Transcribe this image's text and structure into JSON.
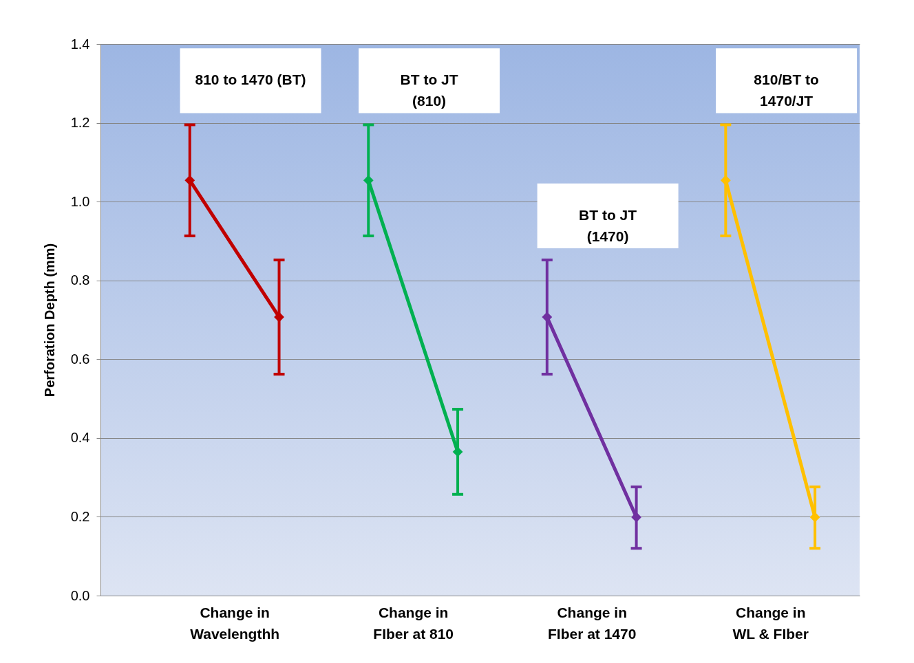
{
  "chart_data": {
    "type": "line",
    "ylabel": "Perforation Depth (mm)",
    "categories": [
      null,
      null,
      "Change in\nWavelengthh",
      null,
      null,
      null,
      "Change in\nFIber at 810",
      null,
      null,
      null,
      "Change in\nFIber at 1470",
      null,
      null,
      null,
      "Change in\nWL & FIber",
      null
    ],
    "ylim": [
      0,
      1.4
    ],
    "yticks": [
      {
        "value": 0,
        "label": "0.0"
      },
      0.2,
      0.4,
      0.6,
      0.8,
      {
        "value": 1,
        "label": "1.0"
      },
      1.2,
      1.4
    ],
    "series": [
      {
        "color": "#c00000",
        "values": [
          null,
          1.054,
          null,
          0.707,
          null,
          null,
          null,
          null,
          null,
          null,
          null,
          null,
          null,
          null,
          null,
          null
        ],
        "errors": [
          null,
          [
            0.913,
            1.195
          ],
          null,
          [
            0.562,
            0.852
          ],
          null,
          null,
          null,
          null,
          null,
          null,
          null,
          null,
          null,
          null,
          null,
          null
        ]
      },
      {
        "color": "#00b050",
        "values": [
          null,
          null,
          null,
          null,
          null,
          1.054,
          null,
          0.365,
          null,
          null,
          null,
          null,
          null,
          null,
          null,
          null
        ],
        "errors": [
          null,
          null,
          null,
          null,
          null,
          [
            0.913,
            1.195
          ],
          null,
          [
            0.257,
            0.473
          ],
          null,
          null,
          null,
          null,
          null,
          null,
          null,
          null
        ]
      },
      {
        "color": "#7030a0",
        "values": [
          null,
          null,
          null,
          null,
          null,
          null,
          null,
          null,
          null,
          0.707,
          null,
          0.199,
          null,
          null,
          null,
          null
        ],
        "errors": [
          null,
          null,
          null,
          null,
          null,
          null,
          null,
          null,
          null,
          [
            0.562,
            0.852
          ],
          null,
          [
            0.12,
            0.276
          ],
          null,
          null,
          null,
          null
        ]
      },
      {
        "color": "#ffc000",
        "values": [
          null,
          null,
          null,
          null,
          null,
          null,
          null,
          null,
          null,
          null,
          null,
          null,
          null,
          1.054,
          null,
          0.199
        ],
        "errors": [
          null,
          null,
          null,
          null,
          null,
          null,
          null,
          null,
          null,
          null,
          null,
          null,
          null,
          [
            0.913,
            1.195
          ],
          null,
          [
            0.12,
            0.276
          ]
        ]
      }
    ],
    "marker": "diamond",
    "grid": "y",
    "legend": false,
    "annotations": [
      "810 to 1470 (BT)",
      "BT to JT\n(810)",
      "BT to JT\n(1470)",
      "810/BT to\n1470/JT"
    ]
  }
}
